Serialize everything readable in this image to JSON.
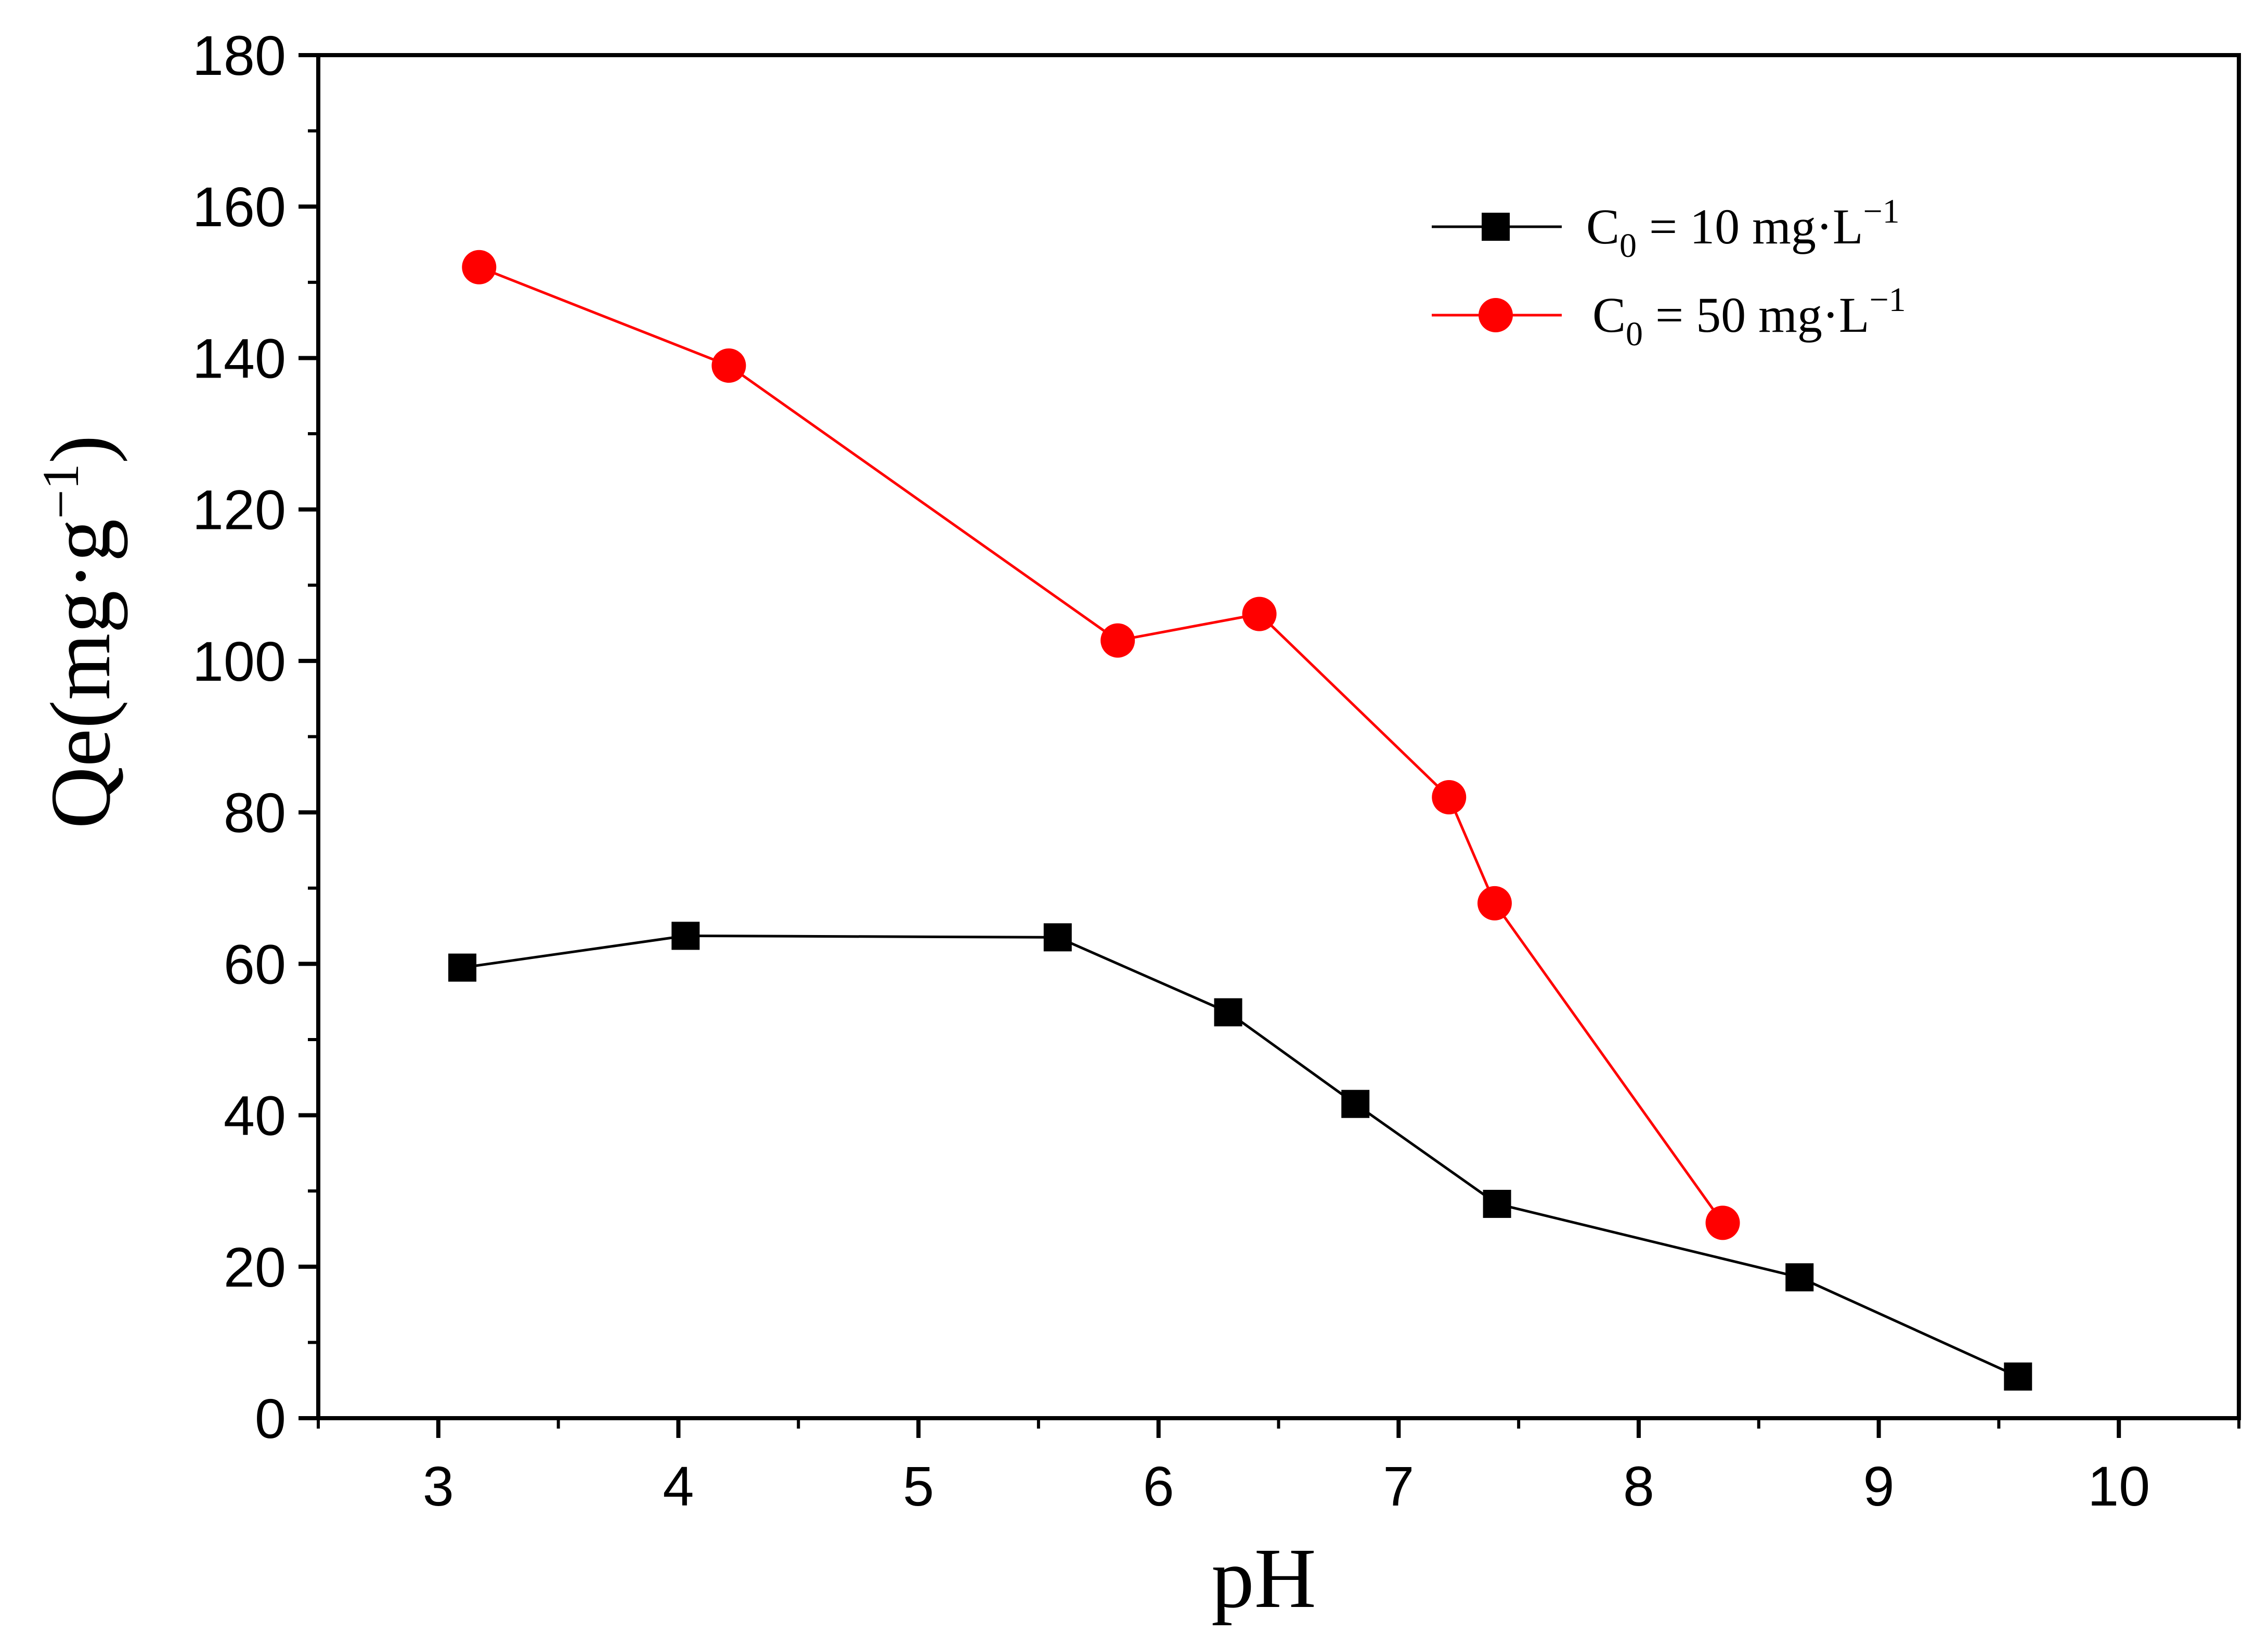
{
  "chart_data": {
    "type": "line",
    "title": "",
    "xlabel": "pH",
    "ylabel": {
      "main": "Qe(mg·g",
      "sup": "−1",
      "close": ")"
    },
    "xlim": [
      2.5,
      10.5
    ],
    "ylim": [
      0,
      180
    ],
    "xticks": [
      3,
      4,
      5,
      6,
      7,
      8,
      9,
      10
    ],
    "yticks": [
      0,
      20,
      40,
      60,
      80,
      100,
      120,
      140,
      160,
      180
    ],
    "grid": false,
    "legend_position": "top-right",
    "series": [
      {
        "name": "C0 = 10 mg·L−1",
        "legend": {
          "prefix": "C",
          "sub": "0",
          "mid": " = 10 mg·L",
          "sup": "−1"
        },
        "color": "#000000",
        "marker": "square",
        "x": [
          3.1,
          4.03,
          5.58,
          6.29,
          6.82,
          7.41,
          8.67,
          9.58
        ],
        "y": [
          59.5,
          63.7,
          63.5,
          53.6,
          41.5,
          28.3,
          18.6,
          5.5
        ]
      },
      {
        "name": "C0 = 50 mg·L−1",
        "legend": {
          "prefix": "C",
          "sub": "0",
          "mid": " = 50 mg·L",
          "sup": "−1"
        },
        "color": "#ff0000",
        "marker": "circle",
        "x": [
          3.17,
          4.21,
          5.83,
          6.42,
          7.21,
          7.4,
          8.35
        ],
        "y": [
          152,
          139,
          102.7,
          106.2,
          82,
          68,
          25.8
        ]
      }
    ]
  }
}
